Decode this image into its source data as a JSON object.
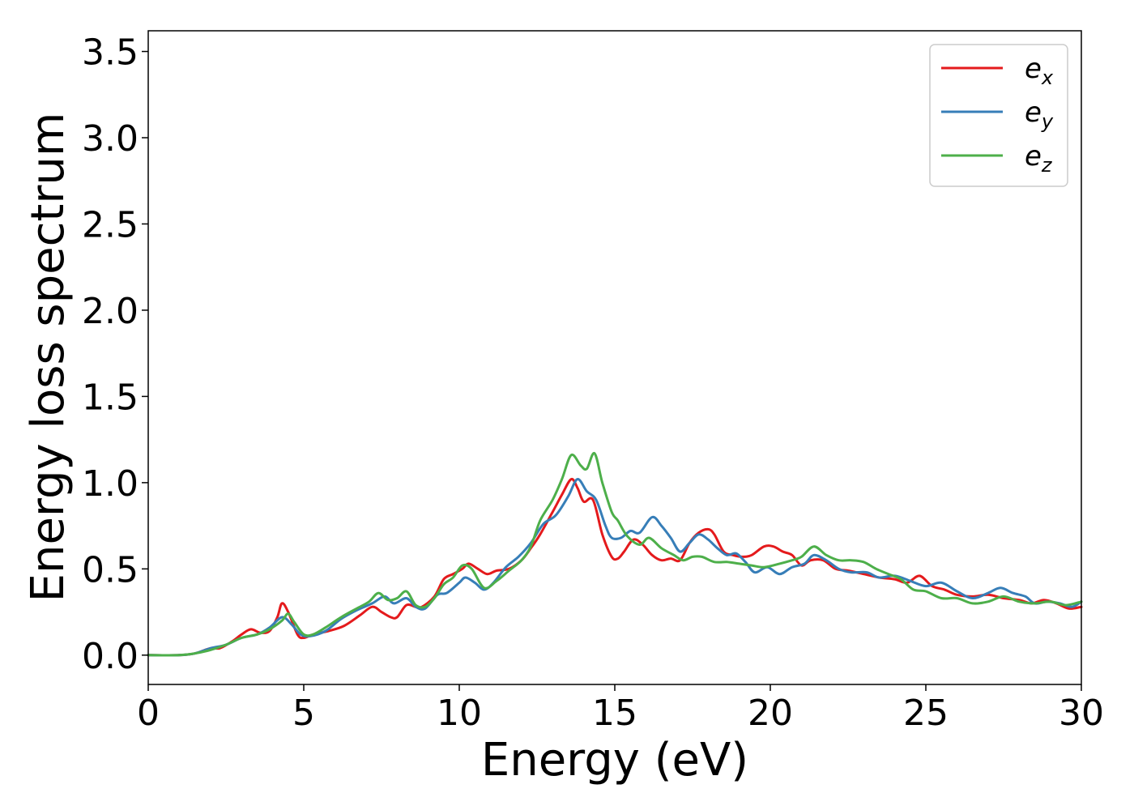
{
  "chart_data": {
    "type": "line",
    "title": "",
    "xlabel": "Energy (eV)",
    "ylabel": "Energy loss spectrum",
    "xlim": [
      0,
      30
    ],
    "ylim": [
      -0.17,
      3.62
    ],
    "xticks": [
      0,
      5,
      10,
      15,
      20,
      25,
      30
    ],
    "xtick_labels": [
      "0",
      "5",
      "10",
      "15",
      "20",
      "25",
      "30"
    ],
    "yticks": [
      0.0,
      0.5,
      1.0,
      1.5,
      2.0,
      2.5,
      3.0,
      3.5
    ],
    "ytick_labels": [
      "0.0",
      "0.5",
      "1.0",
      "1.5",
      "2.0",
      "2.5",
      "3.0",
      "3.5"
    ],
    "grid": false,
    "legend_position": "top-right",
    "series": [
      {
        "name": "e",
        "subscript": "x",
        "color": "#e41a1c",
        "points": [
          [
            0,
            0
          ],
          [
            1,
            0.0
          ],
          [
            1.5,
            0.01
          ],
          [
            2.0,
            0.04
          ],
          [
            2.3,
            0.04
          ],
          [
            2.7,
            0.08
          ],
          [
            3.0,
            0.12
          ],
          [
            3.3,
            0.15
          ],
          [
            3.6,
            0.13
          ],
          [
            3.9,
            0.14
          ],
          [
            4.15,
            0.22
          ],
          [
            4.3,
            0.3
          ],
          [
            4.5,
            0.25
          ],
          [
            4.8,
            0.12
          ],
          [
            5.0,
            0.1
          ],
          [
            5.3,
            0.12
          ],
          [
            5.8,
            0.14
          ],
          [
            6.3,
            0.17
          ],
          [
            6.8,
            0.23
          ],
          [
            7.2,
            0.28
          ],
          [
            7.5,
            0.25
          ],
          [
            7.8,
            0.22
          ],
          [
            8.0,
            0.22
          ],
          [
            8.3,
            0.29
          ],
          [
            8.6,
            0.28
          ],
          [
            8.8,
            0.28
          ],
          [
            9.2,
            0.34
          ],
          [
            9.5,
            0.44
          ],
          [
            9.8,
            0.47
          ],
          [
            10.1,
            0.5
          ],
          [
            10.3,
            0.53
          ],
          [
            10.6,
            0.5
          ],
          [
            10.9,
            0.47
          ],
          [
            11.2,
            0.49
          ],
          [
            11.6,
            0.5
          ],
          [
            12.0,
            0.55
          ],
          [
            12.3,
            0.62
          ],
          [
            12.6,
            0.7
          ],
          [
            13.0,
            0.83
          ],
          [
            13.3,
            0.93
          ],
          [
            13.6,
            1.02
          ],
          [
            13.8,
            0.97
          ],
          [
            14.0,
            0.89
          ],
          [
            14.3,
            0.9
          ],
          [
            14.6,
            0.7
          ],
          [
            14.9,
            0.57
          ],
          [
            15.1,
            0.56
          ],
          [
            15.3,
            0.6
          ],
          [
            15.6,
            0.67
          ],
          [
            15.9,
            0.64
          ],
          [
            16.2,
            0.58
          ],
          [
            16.5,
            0.55
          ],
          [
            16.8,
            0.56
          ],
          [
            17.1,
            0.55
          ],
          [
            17.4,
            0.65
          ],
          [
            17.7,
            0.71
          ],
          [
            18.0,
            0.73
          ],
          [
            18.2,
            0.7
          ],
          [
            18.5,
            0.6
          ],
          [
            18.8,
            0.58
          ],
          [
            19.1,
            0.57
          ],
          [
            19.4,
            0.58
          ],
          [
            19.8,
            0.63
          ],
          [
            20.1,
            0.63
          ],
          [
            20.4,
            0.6
          ],
          [
            20.7,
            0.58
          ],
          [
            21.0,
            0.52
          ],
          [
            21.3,
            0.55
          ],
          [
            21.7,
            0.55
          ],
          [
            22.1,
            0.5
          ],
          [
            22.5,
            0.49
          ],
          [
            23.0,
            0.47
          ],
          [
            23.5,
            0.45
          ],
          [
            24.0,
            0.44
          ],
          [
            24.4,
            0.42
          ],
          [
            24.8,
            0.46
          ],
          [
            25.2,
            0.4
          ],
          [
            25.6,
            0.38
          ],
          [
            26.0,
            0.35
          ],
          [
            26.5,
            0.34
          ],
          [
            27.0,
            0.35
          ],
          [
            27.5,
            0.33
          ],
          [
            28.0,
            0.32
          ],
          [
            28.4,
            0.3
          ],
          [
            28.8,
            0.32
          ],
          [
            29.2,
            0.3
          ],
          [
            29.6,
            0.27
          ],
          [
            30,
            0.28
          ]
        ]
      },
      {
        "name": "e",
        "subscript": "y",
        "color": "#377eb8",
        "points": [
          [
            0,
            0
          ],
          [
            1,
            0.0
          ],
          [
            1.5,
            0.01
          ],
          [
            2.0,
            0.04
          ],
          [
            2.5,
            0.06
          ],
          [
            3.0,
            0.1
          ],
          [
            3.5,
            0.12
          ],
          [
            3.9,
            0.16
          ],
          [
            4.3,
            0.22
          ],
          [
            4.6,
            0.18
          ],
          [
            4.9,
            0.12
          ],
          [
            5.2,
            0.11
          ],
          [
            5.7,
            0.14
          ],
          [
            6.2,
            0.21
          ],
          [
            6.7,
            0.26
          ],
          [
            7.2,
            0.3
          ],
          [
            7.6,
            0.34
          ],
          [
            7.9,
            0.3
          ],
          [
            8.3,
            0.33
          ],
          [
            8.6,
            0.28
          ],
          [
            8.9,
            0.27
          ],
          [
            9.3,
            0.35
          ],
          [
            9.6,
            0.36
          ],
          [
            10.0,
            0.42
          ],
          [
            10.2,
            0.45
          ],
          [
            10.5,
            0.42
          ],
          [
            10.8,
            0.38
          ],
          [
            11.1,
            0.42
          ],
          [
            11.5,
            0.51
          ],
          [
            11.9,
            0.57
          ],
          [
            12.3,
            0.65
          ],
          [
            12.7,
            0.76
          ],
          [
            13.1,
            0.81
          ],
          [
            13.5,
            0.92
          ],
          [
            13.8,
            1.02
          ],
          [
            14.1,
            0.95
          ],
          [
            14.4,
            0.9
          ],
          [
            14.7,
            0.75
          ],
          [
            14.9,
            0.68
          ],
          [
            15.2,
            0.68
          ],
          [
            15.5,
            0.72
          ],
          [
            15.8,
            0.71
          ],
          [
            16.2,
            0.8
          ],
          [
            16.5,
            0.75
          ],
          [
            16.8,
            0.68
          ],
          [
            17.1,
            0.6
          ],
          [
            17.4,
            0.65
          ],
          [
            17.7,
            0.7
          ],
          [
            18.0,
            0.67
          ],
          [
            18.3,
            0.62
          ],
          [
            18.6,
            0.58
          ],
          [
            18.9,
            0.59
          ],
          [
            19.2,
            0.54
          ],
          [
            19.5,
            0.48
          ],
          [
            19.9,
            0.51
          ],
          [
            20.3,
            0.47
          ],
          [
            20.7,
            0.51
          ],
          [
            21.1,
            0.53
          ],
          [
            21.4,
            0.58
          ],
          [
            21.8,
            0.55
          ],
          [
            22.2,
            0.5
          ],
          [
            22.6,
            0.48
          ],
          [
            23.1,
            0.48
          ],
          [
            23.5,
            0.45
          ],
          [
            24.0,
            0.46
          ],
          [
            24.5,
            0.43
          ],
          [
            25.0,
            0.4
          ],
          [
            25.5,
            0.42
          ],
          [
            26.0,
            0.37
          ],
          [
            26.5,
            0.33
          ],
          [
            27.0,
            0.36
          ],
          [
            27.4,
            0.39
          ],
          [
            27.8,
            0.36
          ],
          [
            28.2,
            0.34
          ],
          [
            28.5,
            0.3
          ],
          [
            28.9,
            0.31
          ],
          [
            29.3,
            0.3
          ],
          [
            29.7,
            0.28
          ],
          [
            30,
            0.31
          ]
        ]
      },
      {
        "name": "e",
        "subscript": "z",
        "color": "#4daf4a",
        "points": [
          [
            0,
            0
          ],
          [
            1,
            0.0
          ],
          [
            1.5,
            0.01
          ],
          [
            2.0,
            0.03
          ],
          [
            2.5,
            0.06
          ],
          [
            3.0,
            0.1
          ],
          [
            3.5,
            0.12
          ],
          [
            3.9,
            0.15
          ],
          [
            4.3,
            0.2
          ],
          [
            4.5,
            0.24
          ],
          [
            4.7,
            0.19
          ],
          [
            5.0,
            0.12
          ],
          [
            5.3,
            0.12
          ],
          [
            5.7,
            0.16
          ],
          [
            6.2,
            0.22
          ],
          [
            6.7,
            0.27
          ],
          [
            7.1,
            0.31
          ],
          [
            7.4,
            0.36
          ],
          [
            7.7,
            0.32
          ],
          [
            8.0,
            0.33
          ],
          [
            8.3,
            0.37
          ],
          [
            8.6,
            0.29
          ],
          [
            8.9,
            0.28
          ],
          [
            9.2,
            0.33
          ],
          [
            9.5,
            0.41
          ],
          [
            9.8,
            0.45
          ],
          [
            10.1,
            0.52
          ],
          [
            10.4,
            0.5
          ],
          [
            10.8,
            0.39
          ],
          [
            11.2,
            0.43
          ],
          [
            11.6,
            0.49
          ],
          [
            12.0,
            0.55
          ],
          [
            12.3,
            0.63
          ],
          [
            12.6,
            0.78
          ],
          [
            13.0,
            0.9
          ],
          [
            13.3,
            1.02
          ],
          [
            13.6,
            1.16
          ],
          [
            13.9,
            1.1
          ],
          [
            14.1,
            1.08
          ],
          [
            14.35,
            1.17
          ],
          [
            14.6,
            1.0
          ],
          [
            14.9,
            0.83
          ],
          [
            15.1,
            0.78
          ],
          [
            15.4,
            0.69
          ],
          [
            15.8,
            0.64
          ],
          [
            16.1,
            0.68
          ],
          [
            16.5,
            0.62
          ],
          [
            16.9,
            0.58
          ],
          [
            17.2,
            0.55
          ],
          [
            17.5,
            0.57
          ],
          [
            17.8,
            0.57
          ],
          [
            18.2,
            0.54
          ],
          [
            18.6,
            0.54
          ],
          [
            19.0,
            0.53
          ],
          [
            19.4,
            0.52
          ],
          [
            19.8,
            0.51
          ],
          [
            20.3,
            0.53
          ],
          [
            20.7,
            0.55
          ],
          [
            21.0,
            0.57
          ],
          [
            21.4,
            0.63
          ],
          [
            21.8,
            0.58
          ],
          [
            22.2,
            0.55
          ],
          [
            22.6,
            0.55
          ],
          [
            23.0,
            0.54
          ],
          [
            23.4,
            0.5
          ],
          [
            23.8,
            0.47
          ],
          [
            24.2,
            0.44
          ],
          [
            24.6,
            0.38
          ],
          [
            25.0,
            0.37
          ],
          [
            25.5,
            0.33
          ],
          [
            26.0,
            0.33
          ],
          [
            26.5,
            0.3
          ],
          [
            27.0,
            0.31
          ],
          [
            27.5,
            0.34
          ],
          [
            28.0,
            0.31
          ],
          [
            28.5,
            0.3
          ],
          [
            29.0,
            0.31
          ],
          [
            29.5,
            0.29
          ],
          [
            30,
            0.31
          ]
        ]
      }
    ]
  }
}
